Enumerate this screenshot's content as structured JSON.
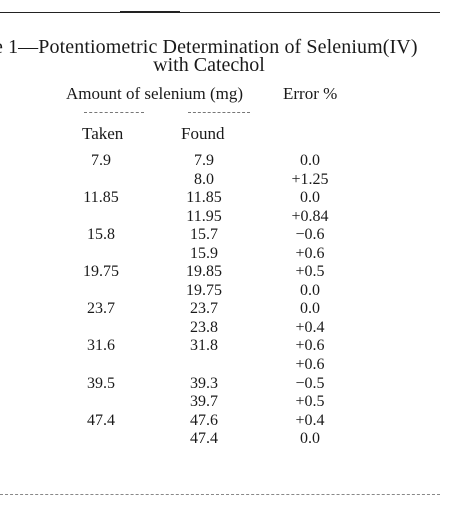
{
  "table": {
    "title_line1": "e 1—Potentiometric  Determination  of  Selenium(IV)",
    "title_line2": "with Catechol",
    "header_amount": "Amount of selenium (mg)",
    "header_error": "Error %",
    "subheader_taken": "Taken",
    "subheader_found": "Found",
    "rows": [
      {
        "taken": "7.9",
        "found": "7.9",
        "error": "0.0"
      },
      {
        "taken": "",
        "found": "8.0",
        "error": "+1.25"
      },
      {
        "taken": "11.85",
        "found": "11.85",
        "error": "0.0"
      },
      {
        "taken": "",
        "found": "11.95",
        "error": "+0.84"
      },
      {
        "taken": "15.8",
        "found": "15.7",
        "error": "−0.6"
      },
      {
        "taken": "",
        "found": "15.9",
        "error": "+0.6"
      },
      {
        "taken": "19.75",
        "found": "19.85",
        "error": "+0.5"
      },
      {
        "taken": "",
        "found": "19.75",
        "error": "0.0"
      },
      {
        "taken": "23.7",
        "found": "23.7",
        "error": "0.0"
      },
      {
        "taken": "",
        "found": "23.8",
        "error": "+0.4"
      },
      {
        "taken": "31.6",
        "found": "31.8",
        "error": "+0.6"
      },
      {
        "taken": "",
        "found": "",
        "error": "+0.6"
      },
      {
        "taken": "39.5",
        "found": "39.3",
        "error": "−0.5"
      },
      {
        "taken": "",
        "found": "39.7",
        "error": "+0.5"
      },
      {
        "taken": "47.4",
        "found": "47.6",
        "error": "+0.4"
      },
      {
        "taken": "",
        "found": "47.4",
        "error": "0.0"
      }
    ]
  }
}
